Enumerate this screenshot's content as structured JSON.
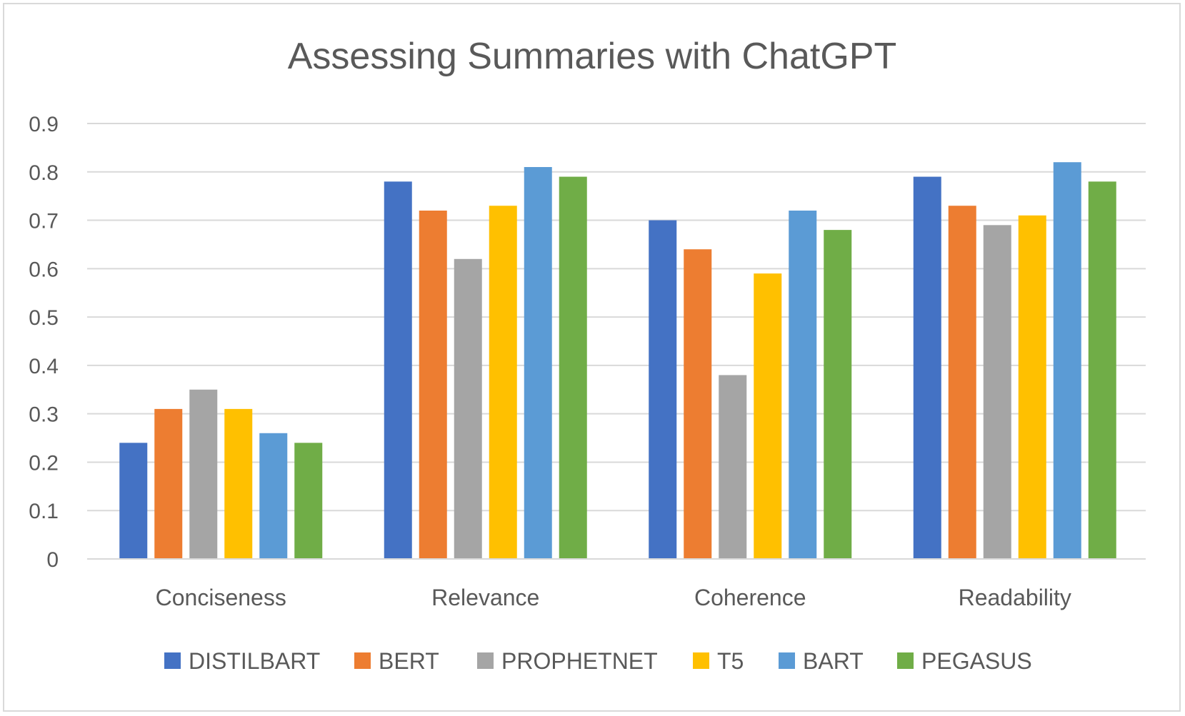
{
  "chart_data": {
    "type": "bar",
    "title": "Assessing Summaries with ChatGPT",
    "xlabel": "",
    "ylabel": "",
    "ylim": [
      0,
      0.9
    ],
    "yticks": [
      "0",
      "0.1",
      "0.2",
      "0.3",
      "0.4",
      "0.5",
      "0.6",
      "0.7",
      "0.8",
      "0.9"
    ],
    "grid": true,
    "legend_position": "bottom",
    "categories": [
      "Conciseness",
      "Relevance",
      "Coherence",
      "Readability"
    ],
    "series": [
      {
        "name": "DISTILBART",
        "color": "#4472c4",
        "values": [
          0.24,
          0.78,
          0.7,
          0.79
        ]
      },
      {
        "name": "BERT",
        "color": "#ed7d31",
        "values": [
          0.31,
          0.72,
          0.64,
          0.73
        ]
      },
      {
        "name": "PROPHETNET",
        "color": "#a5a5a5",
        "values": [
          0.35,
          0.62,
          0.38,
          0.69
        ]
      },
      {
        "name": "T5",
        "color": "#ffc000",
        "values": [
          0.31,
          0.73,
          0.59,
          0.71
        ]
      },
      {
        "name": "BART",
        "color": "#5b9bd5",
        "values": [
          0.26,
          0.81,
          0.72,
          0.82
        ]
      },
      {
        "name": "PEGASUS",
        "color": "#70ad47",
        "values": [
          0.24,
          0.79,
          0.68,
          0.78
        ]
      }
    ]
  }
}
